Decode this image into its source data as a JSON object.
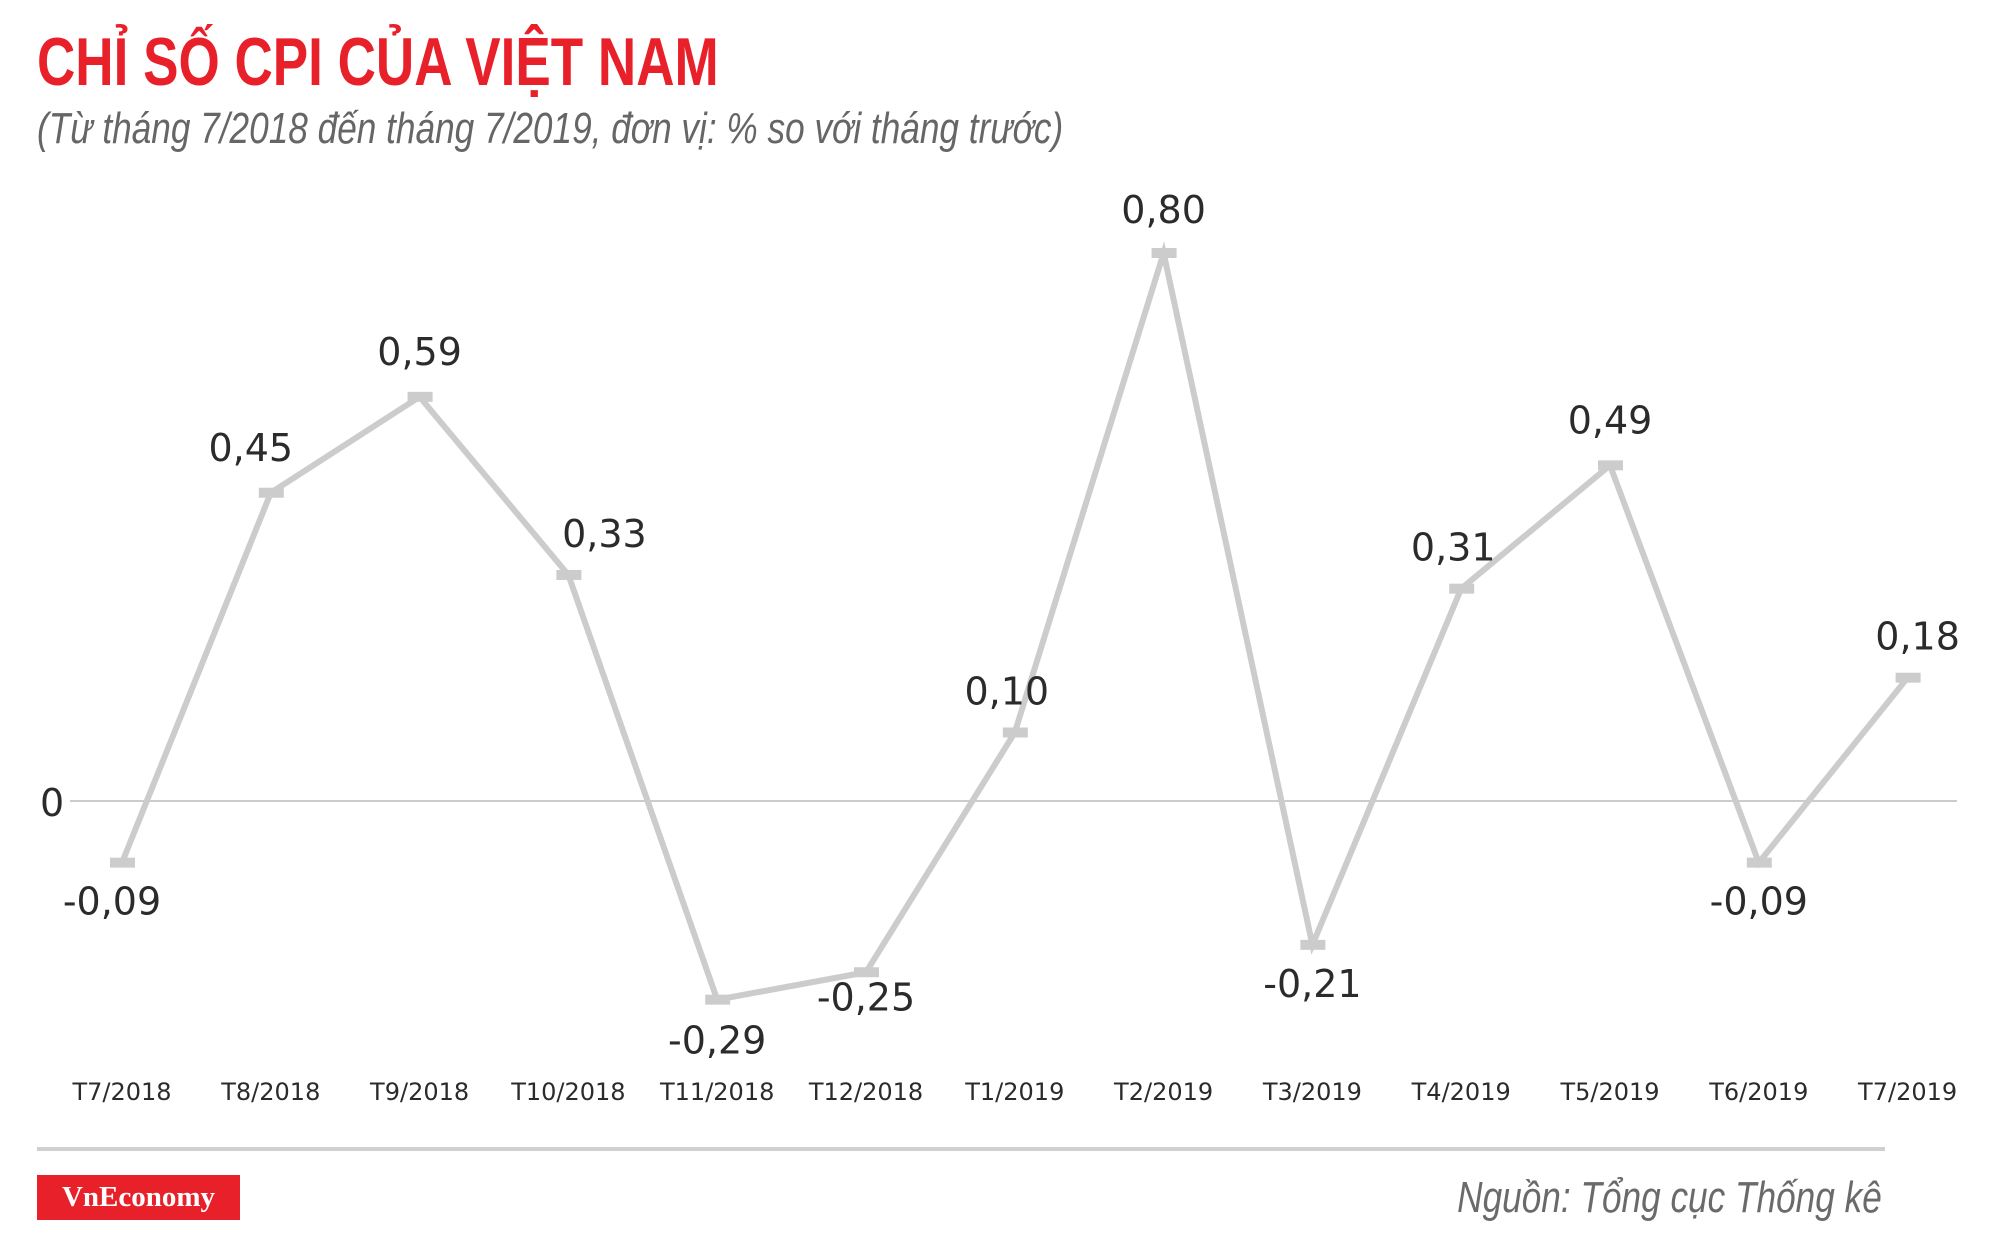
{
  "header": {
    "title": "CHỈ SỐ CPI CỦA VIỆT NAM",
    "subtitle": "(Từ tháng 7/2018 đến tháng 7/2019, đơn vị: % so với tháng trước)"
  },
  "footer": {
    "brand": "VnEconomy",
    "source": "Nguồn: Tổng cục Thống kê"
  },
  "colors": {
    "accent": "#e8202a",
    "line": "#cccccc",
    "zero_line": "#cccccc",
    "label": "#2b2b2b",
    "subtitle": "#666666"
  },
  "chart_data": {
    "type": "line",
    "title": "CHỈ SỐ CPI CỦA VIỆT NAM",
    "subtitle": "(Từ tháng 7/2018 đến tháng 7/2019, đơn vị: % so với tháng trước)",
    "xlabel": "",
    "ylabel": "% so với tháng trước",
    "categories": [
      "T7/2018",
      "T8/2018",
      "T9/2018",
      "T10/2018",
      "T11/2018",
      "T12/2018",
      "T1/2019",
      "T2/2019",
      "T3/2019",
      "T4/2019",
      "T5/2019",
      "T6/2019",
      "T7/2019"
    ],
    "series": [
      {
        "name": "CPI",
        "values": [
          -0.09,
          0.45,
          0.59,
          0.33,
          -0.29,
          -0.25,
          0.1,
          0.8,
          -0.21,
          0.31,
          0.49,
          -0.09,
          0.18
        ],
        "labels": [
          "-0,09",
          "0,45",
          "0,59",
          "0,33",
          "-0,29",
          "-0,25",
          "0,10",
          "0,80",
          "-0,21",
          "0,31",
          "0,49",
          "-0,09",
          "0,18"
        ]
      }
    ],
    "zero_label": "0",
    "ylim": [
      -0.3,
      0.85
    ],
    "grid": false,
    "legend": "none",
    "source": "Nguồn: Tổng cục Thống kê"
  }
}
